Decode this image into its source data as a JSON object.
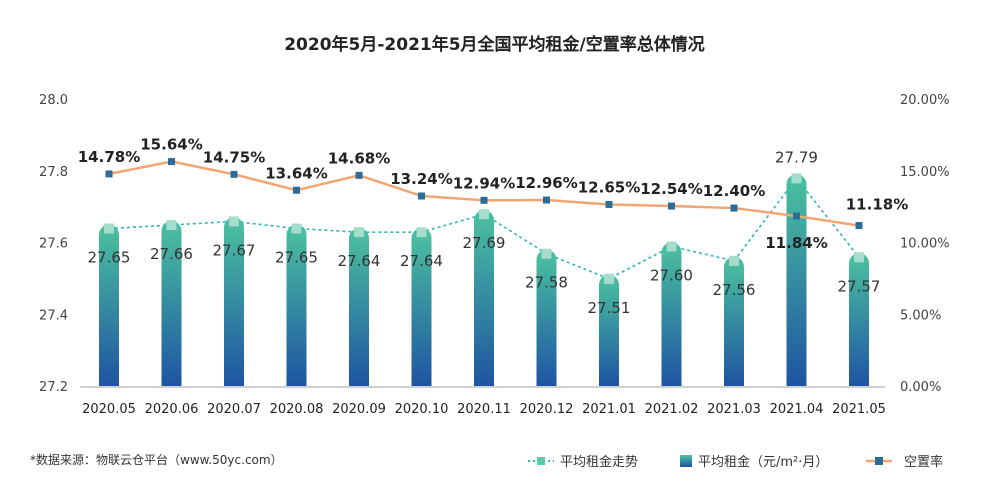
{
  "chart_data": {
    "type": "bar",
    "title": "2020年5月-2021年5月全国平均租金/空置率总体情况",
    "categories": [
      "2020.05",
      "2020.06",
      "2020.07",
      "2020.08",
      "2020.09",
      "2020.10",
      "2020.11",
      "2020.12",
      "2021.01",
      "2021.02",
      "2021.03",
      "2021.04",
      "2021.05"
    ],
    "series": [
      {
        "name": "平均租金（元/m²·月）",
        "type": "bar",
        "axis": "left",
        "values": [
          27.65,
          27.66,
          27.67,
          27.65,
          27.64,
          27.64,
          27.69,
          27.58,
          27.51,
          27.6,
          27.56,
          27.79,
          27.57
        ],
        "labels": [
          "27.65",
          "27.66",
          "27.67",
          "27.65",
          "27.64",
          "27.64",
          "27.69",
          "27.58",
          "27.51",
          "27.60",
          "27.56",
          "27.79",
          "27.57"
        ]
      },
      {
        "name": "平均租金走势",
        "type": "line",
        "style": "dotted",
        "axis": "left",
        "values": [
          27.65,
          27.66,
          27.67,
          27.65,
          27.64,
          27.64,
          27.69,
          27.58,
          27.51,
          27.6,
          27.56,
          27.79,
          27.57
        ]
      },
      {
        "name": "空置率",
        "type": "line",
        "axis": "right",
        "values": [
          14.78,
          15.64,
          14.75,
          13.64,
          14.68,
          13.24,
          12.94,
          12.96,
          12.65,
          12.54,
          12.4,
          11.84,
          11.18
        ],
        "labels": [
          "14.78%",
          "15.64%",
          "14.75%",
          "13.64%",
          "14.68%",
          "13.24%",
          "12.94%",
          "12.96%",
          "12.65%",
          "12.54%",
          "12.40%",
          "11.84%",
          "11.18%"
        ]
      }
    ],
    "ylim_left": [
      27.2,
      28.0
    ],
    "yticks_left": [
      "27.2",
      "27.4",
      "27.6",
      "27.8",
      "28.0"
    ],
    "ylim_right": [
      0,
      20
    ],
    "yticks_right": [
      "0.00%",
      "5.00%",
      "10.00%",
      "15.00%",
      "20.00%"
    ],
    "legend": {
      "placement": "bottom-right",
      "items": [
        "平均租金走势",
        "平均租金（元/m²·月）",
        "空置率"
      ]
    },
    "colors": {
      "bar_top": "#4cc3a0",
      "bar_bottom": "#1e54a2",
      "trend": "#35b5b8",
      "vacancy": "#f2a572",
      "vacancy_marker": "#2a6d99"
    }
  },
  "source": "*数据来源：物联云仓平台（www.50yc.com）"
}
